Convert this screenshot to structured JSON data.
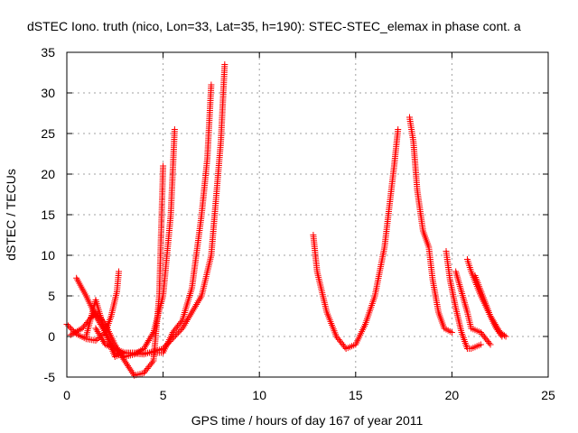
{
  "chart_data": {
    "type": "scatter",
    "title": "dSTEC Iono. truth (nico, Lon=33, Lat=35, h=190): STEC-STEC_elemax in phase cont. a",
    "xlabel": "GPS time / hours of day 167 of year 2011",
    "ylabel": "dSTEC  / TECUs",
    "xlim": [
      0,
      25
    ],
    "ylim": [
      -5,
      35
    ],
    "xticks": [
      0,
      5,
      10,
      15,
      20,
      25
    ],
    "yticks": [
      -5,
      0,
      5,
      10,
      15,
      20,
      25,
      30,
      35
    ],
    "grid": true,
    "legend": "none",
    "marker": "plus",
    "series_color": "#ff0000",
    "series": [
      {
        "x": [
          0.0,
          0.5,
          1.0,
          1.5,
          2.0,
          2.3,
          2.6,
          2.7
        ],
        "y": [
          1.5,
          0.3,
          -0.3,
          -0.5,
          0.5,
          2.5,
          5.5,
          8.0
        ]
      },
      {
        "x": [
          0.5,
          1.0,
          1.5,
          2.0,
          2.5,
          3.0,
          3.5,
          4.0,
          4.5,
          5.0,
          5.4,
          5.6
        ],
        "y": [
          7.2,
          5.0,
          2.5,
          0.5,
          -2.0,
          -2.5,
          -2.2,
          -1.5,
          0.5,
          5.0,
          15.0,
          25.5
        ]
      },
      {
        "x": [
          0.2,
          0.8,
          1.5,
          2.0,
          2.5,
          3.0,
          3.5,
          4.0,
          4.5,
          4.8,
          5.0
        ],
        "y": [
          0.2,
          1.0,
          3.0,
          1.5,
          -1.0,
          -3.0,
          -4.8,
          -4.5,
          -3.0,
          5.0,
          21.0
        ]
      },
      {
        "x": [
          1.0,
          1.5,
          2.0,
          2.5,
          3.0,
          4.0,
          5.0,
          5.5,
          6.0,
          6.5,
          7.0,
          7.3,
          7.5
        ],
        "y": [
          0.0,
          4.5,
          0.5,
          -2.5,
          -2.0,
          -2.0,
          -2.0,
          0.5,
          2.0,
          6.0,
          15.0,
          22.0,
          31.0
        ]
      },
      {
        "x": [
          1.5,
          2.0,
          3.0,
          4.0,
          5.0,
          6.0,
          7.0,
          7.5,
          8.0,
          8.2
        ],
        "y": [
          1.0,
          -1.0,
          -2.0,
          -2.2,
          -1.5,
          1.0,
          5.0,
          10.0,
          24.0,
          33.5
        ]
      },
      {
        "x": [
          12.8,
          13.0,
          13.5,
          14.0,
          14.5,
          15.0,
          15.5,
          16.0,
          16.5,
          17.0,
          17.2
        ],
        "y": [
          12.5,
          8.0,
          3.0,
          0.0,
          -1.5,
          -1.0,
          1.5,
          5.0,
          11.0,
          21.0,
          25.5
        ]
      },
      {
        "x": [
          17.8,
          18.0,
          18.2,
          18.5,
          18.8,
          19.0,
          19.3,
          19.6,
          20.0
        ],
        "y": [
          27.0,
          24.0,
          18.0,
          13.0,
          11.0,
          7.0,
          3.0,
          1.0,
          0.5
        ]
      },
      {
        "x": [
          19.7,
          19.9,
          20.2,
          20.5,
          20.8,
          21.0,
          21.5
        ],
        "y": [
          10.5,
          7.0,
          3.5,
          0.5,
          -1.5,
          -1.5,
          -1.0
        ]
      },
      {
        "x": [
          20.2,
          20.5,
          20.8,
          21.0,
          21.5,
          22.0
        ],
        "y": [
          8.0,
          5.5,
          3.0,
          1.0,
          0.5,
          -1.0
        ]
      },
      {
        "x": [
          20.8,
          21.0,
          21.5,
          22.0,
          22.5,
          22.8
        ],
        "y": [
          9.5,
          8.0,
          5.0,
          2.5,
          0.5,
          0.0
        ]
      },
      {
        "x": [
          21.2,
          21.6,
          22.0,
          22.3,
          22.6
        ],
        "y": [
          7.5,
          5.0,
          2.5,
          1.0,
          0.0
        ]
      }
    ]
  }
}
